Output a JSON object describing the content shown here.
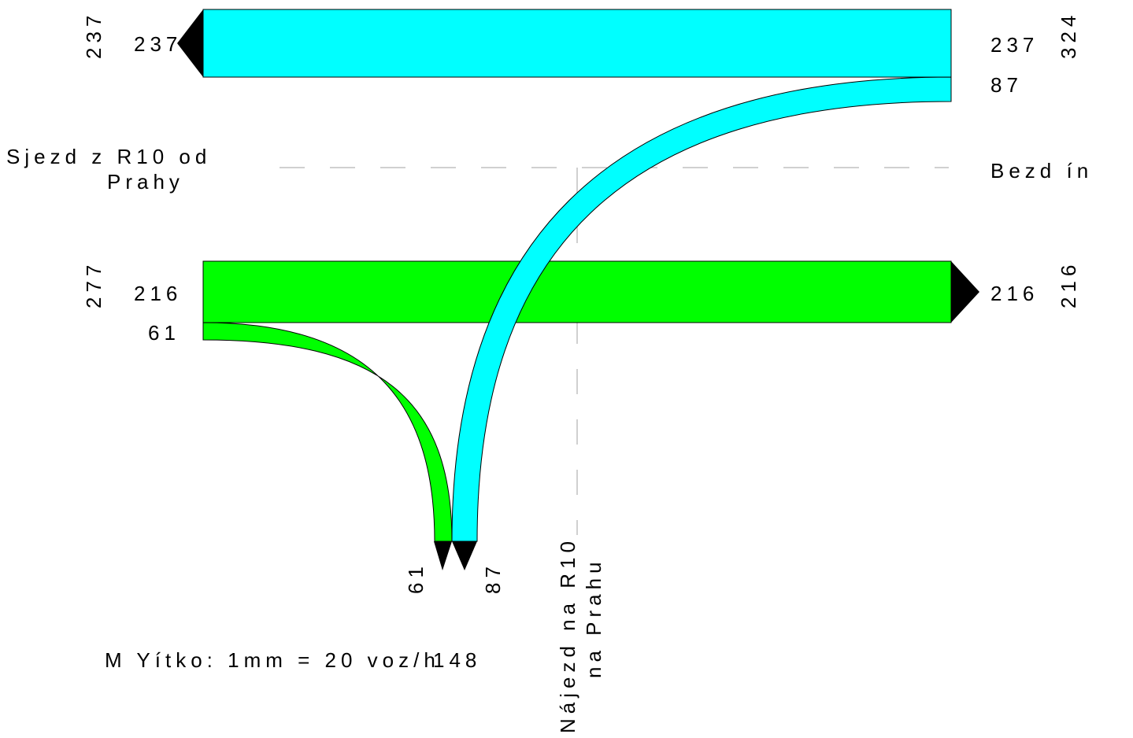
{
  "approaches": {
    "left": {
      "name_line1": "Sjezd z R10 od",
      "name_line2": "Prahy",
      "total_in": "277",
      "total_out": "237"
    },
    "right": {
      "name": "Bezd ín",
      "total_in": "324",
      "total_out": "216"
    },
    "bottom": {
      "name_line1": "Nájezd na R10",
      "name_line2": "na Prahu",
      "total_in": "148"
    }
  },
  "flows": {
    "right_to_left": {
      "value": "237",
      "label_start": "237",
      "label_end": "237"
    },
    "right_to_bottom": {
      "value": "87",
      "label_start": "87",
      "label_end": "87"
    },
    "left_to_right": {
      "value": "216",
      "label_start": "216",
      "label_end": "216"
    },
    "left_to_bottom": {
      "value": "61",
      "label_start": "61",
      "label_end": "61"
    }
  },
  "colors": {
    "from_right": "#00ffff",
    "from_left": "#00ff00",
    "arrow": "#000000",
    "guide": "#c0c0c0"
  },
  "scale_note": "M Yítko: 1mm = 20 voz/h"
}
